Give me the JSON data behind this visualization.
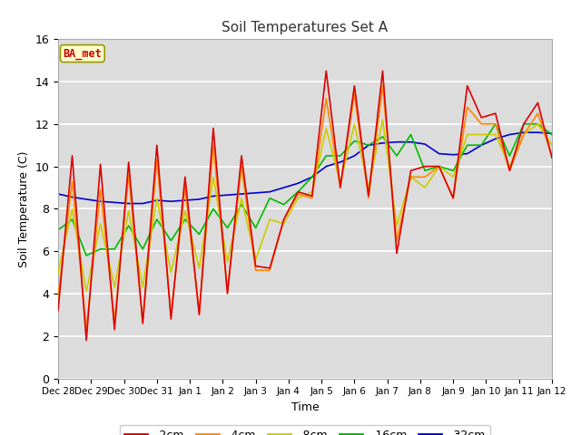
{
  "title": "Soil Temperatures Set A",
  "xlabel": "Time",
  "ylabel": "Soil Temperature (C)",
  "ylim": [
    0,
    16
  ],
  "bg_color": "#dcdcdc",
  "annotation_text": "BA_met",
  "annotation_box_color": "#ffffcc",
  "annotation_text_color": "#cc0000",
  "legend_labels": [
    "-2cm",
    "-4cm",
    "-8cm",
    "-16cm",
    "-32cm"
  ],
  "colors": [
    "#dd0000",
    "#ff8800",
    "#cccc00",
    "#00bb00",
    "#0000cc"
  ],
  "tick_labels": [
    "Dec 28",
    "Dec 29",
    "Dec 30",
    "Dec 31",
    "Jan 1",
    "Jan 2",
    "Jan 3",
    "Jan 4",
    "Jan 5",
    "Jan 6",
    "Jan 7",
    "Jan 8",
    "Jan 9",
    "Jan 10",
    "Jan 11",
    "Jan 12"
  ],
  "yticks": [
    0,
    2,
    4,
    6,
    8,
    10,
    12,
    14,
    16
  ],
  "depth_2cm": [
    3.2,
    10.5,
    1.8,
    10.1,
    2.3,
    10.2,
    2.6,
    11.0,
    2.8,
    9.5,
    3.0,
    11.8,
    4.0,
    10.5,
    5.3,
    5.2,
    7.5,
    8.8,
    8.6,
    14.5,
    9.0,
    13.8,
    8.6,
    14.5,
    5.9,
    9.8,
    10.0,
    10.0,
    8.5,
    13.8,
    12.3,
    12.5,
    9.8,
    12.0,
    13.0,
    10.4
  ],
  "depth_4cm": [
    3.9,
    9.3,
    2.3,
    8.9,
    2.7,
    9.6,
    2.6,
    10.3,
    3.0,
    9.0,
    3.1,
    11.0,
    4.1,
    10.0,
    5.1,
    5.1,
    7.5,
    8.7,
    8.5,
    13.2,
    9.0,
    13.4,
    8.5,
    13.8,
    6.5,
    9.5,
    9.5,
    10.0,
    8.5,
    12.8,
    12.0,
    12.0,
    9.8,
    11.5,
    12.5,
    10.5
  ],
  "depth_8cm": [
    5.0,
    8.0,
    4.1,
    7.3,
    4.3,
    7.9,
    4.3,
    8.5,
    5.0,
    7.9,
    5.2,
    9.5,
    5.5,
    8.5,
    5.6,
    7.5,
    7.3,
    8.5,
    8.8,
    11.8,
    9.2,
    12.0,
    9.0,
    12.2,
    7.2,
    9.5,
    9.0,
    10.0,
    9.5,
    11.5,
    11.5,
    11.5,
    10.0,
    11.5,
    12.0,
    11.0
  ],
  "depth_16cm": [
    7.0,
    7.5,
    5.8,
    6.1,
    6.1,
    7.2,
    6.1,
    7.5,
    6.5,
    7.5,
    6.8,
    8.0,
    7.1,
    8.2,
    7.1,
    8.5,
    8.2,
    8.8,
    9.5,
    10.5,
    10.5,
    11.2,
    11.0,
    11.4,
    10.5,
    11.5,
    9.8,
    10.0,
    9.8,
    11.0,
    11.0,
    12.0,
    10.5,
    12.0,
    12.0,
    11.5
  ],
  "depth_32cm": [
    8.7,
    8.55,
    8.45,
    8.35,
    8.3,
    8.25,
    8.25,
    8.4,
    8.35,
    8.4,
    8.45,
    8.6,
    8.65,
    8.7,
    8.75,
    8.8,
    9.0,
    9.2,
    9.5,
    10.0,
    10.2,
    10.5,
    11.0,
    11.1,
    11.15,
    11.15,
    11.05,
    10.6,
    10.55,
    10.6,
    11.0,
    11.3,
    11.5,
    11.6,
    11.6,
    11.55
  ]
}
